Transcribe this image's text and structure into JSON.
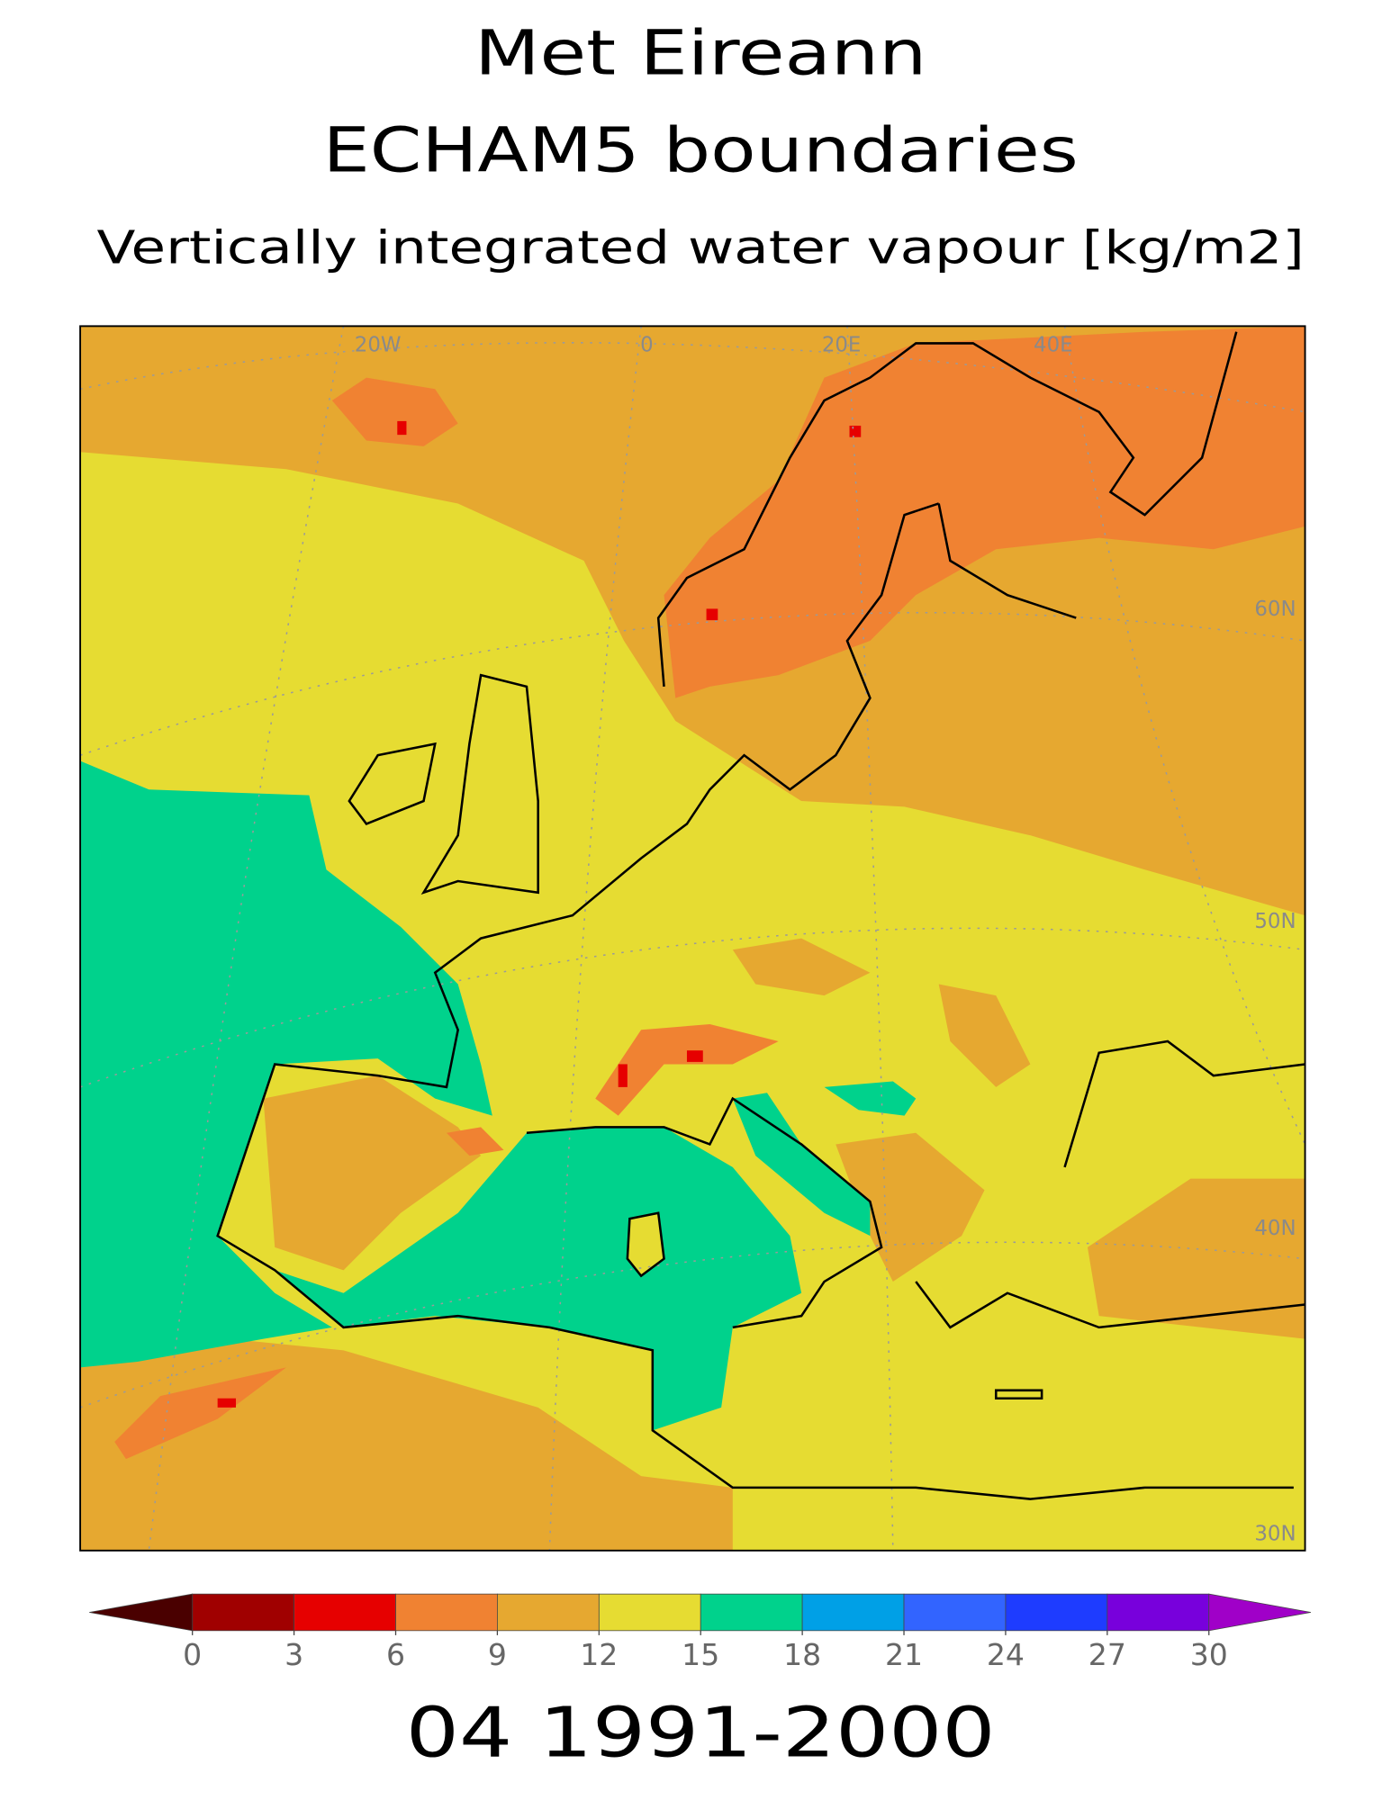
{
  "header": {
    "title": "Met Eireann",
    "subtitle": "ECHAM5 boundaries",
    "variable": "Vertically integrated water vapour [kg/m2]"
  },
  "map": {
    "lon_labels": [
      "20W",
      "0",
      "20E",
      "40E"
    ],
    "lat_labels": [
      "60N",
      "50N",
      "40N",
      "30N"
    ]
  },
  "colorbar": {
    "ticks": [
      0,
      3,
      6,
      9,
      12,
      15,
      18,
      21,
      24,
      27,
      30
    ],
    "colors": [
      "#a00000",
      "#e60000",
      "#f08232",
      "#e6a830",
      "#e6dc32",
      "#00d28c",
      "#00a0e6",
      "#3264ff",
      "#1e3cff",
      "#7800dc"
    ],
    "under_color": "#4a0000",
    "over_color": "#a000c8"
  },
  "footer": "04 1991-2000"
}
